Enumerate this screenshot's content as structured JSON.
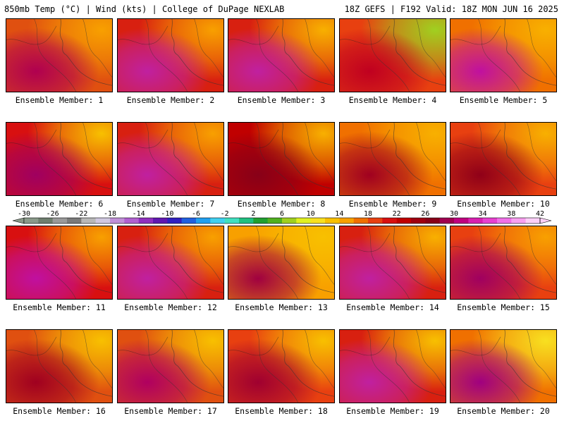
{
  "header": {
    "left": "850mb Temp (°C) | Wind (kts) | College of DuPage NEXLAB",
    "right": "18Z GEFS | F192 Valid: 18Z MON JUN 16 2025"
  },
  "colorbar": {
    "ticks": [
      "-30",
      "-26",
      "-22",
      "-18",
      "-14",
      "-10",
      "-6",
      "-2",
      "2",
      "6",
      "10",
      "14",
      "18",
      "22",
      "26",
      "30",
      "34",
      "38",
      "42"
    ],
    "colors": [
      "#8a9a8a",
      "#6e7e6e",
      "#9a9a9a",
      "#7a7a7a",
      "#b8b8b8",
      "#d0c8e0",
      "#c090d8",
      "#b060d0",
      "#9030c0",
      "#6018b0",
      "#3020c0",
      "#2060e0",
      "#20a0f0",
      "#40d0f0",
      "#40e0c0",
      "#20c080",
      "#20a030",
      "#50b020",
      "#a0d020",
      "#e0f020",
      "#f8e020",
      "#f8c000",
      "#f8a000",
      "#f07000",
      "#e84010",
      "#d81010",
      "#c00000",
      "#a00010",
      "#880018",
      "#a00050",
      "#c00080",
      "#d820b0",
      "#e840d0",
      "#f070e8",
      "#f8a0f0",
      "#fcd0f8"
    ]
  },
  "members": [
    {
      "label": "Ensemble Member: 1",
      "bg": "#e05010",
      "warm": "#b00050",
      "cool": "#f8a000"
    },
    {
      "label": "Ensemble Member: 2",
      "bg": "#d82010",
      "warm": "#c020a0",
      "cool": "#f8a000"
    },
    {
      "label": "Ensemble Member: 3",
      "bg": "#d82010",
      "warm": "#c020a0",
      "cool": "#f8b000"
    },
    {
      "label": "Ensemble Member: 4",
      "bg": "#e84010",
      "warm": "#c00020",
      "cool": "#a0d020"
    },
    {
      "label": "Ensemble Member: 5",
      "bg": "#f07000",
      "warm": "#c010a0",
      "cool": "#f8b000"
    },
    {
      "label": "Ensemble Member: 6",
      "bg": "#d81010",
      "warm": "#a00060",
      "cool": "#f8c000"
    },
    {
      "label": "Ensemble Member: 7",
      "bg": "#d82010",
      "warm": "#c020a0",
      "cool": "#f8a000"
    },
    {
      "label": "Ensemble Member: 8",
      "bg": "#c00000",
      "warm": "#880018",
      "cool": "#f8b000"
    },
    {
      "label": "Ensemble Member: 9",
      "bg": "#f07000",
      "warm": "#a00020",
      "cool": "#f8b000"
    },
    {
      "label": "Ensemble Member: 10",
      "bg": "#e84010",
      "warm": "#900018",
      "cool": "#f8b000"
    },
    {
      "label": "Ensemble Member: 11",
      "bg": "#d81010",
      "warm": "#c010a0",
      "cool": "#f8a000"
    },
    {
      "label": "Ensemble Member: 12",
      "bg": "#d82010",
      "warm": "#c020a0",
      "cool": "#f8a000"
    },
    {
      "label": "Ensemble Member: 13",
      "bg": "#f8a000",
      "warm": "#a00040",
      "cool": "#f8c000"
    },
    {
      "label": "Ensemble Member: 14",
      "bg": "#d82010",
      "warm": "#c020a0",
      "cool": "#f8b000"
    },
    {
      "label": "Ensemble Member: 15",
      "bg": "#e84010",
      "warm": "#a00060",
      "cool": "#f8a000"
    },
    {
      "label": "Ensemble Member: 16",
      "bg": "#e05010",
      "warm": "#a00020",
      "cool": "#f8c000"
    },
    {
      "label": "Ensemble Member: 17",
      "bg": "#e05010",
      "warm": "#b00060",
      "cool": "#f8c000"
    },
    {
      "label": "Ensemble Member: 18",
      "bg": "#e84010",
      "warm": "#a00030",
      "cool": "#f8c000"
    },
    {
      "label": "Ensemble Member: 19",
      "bg": "#d82010",
      "warm": "#c020a0",
      "cool": "#f8c000"
    },
    {
      "label": "Ensemble Member: 20",
      "bg": "#f07000",
      "warm": "#a00080",
      "cool": "#f8e020"
    }
  ]
}
